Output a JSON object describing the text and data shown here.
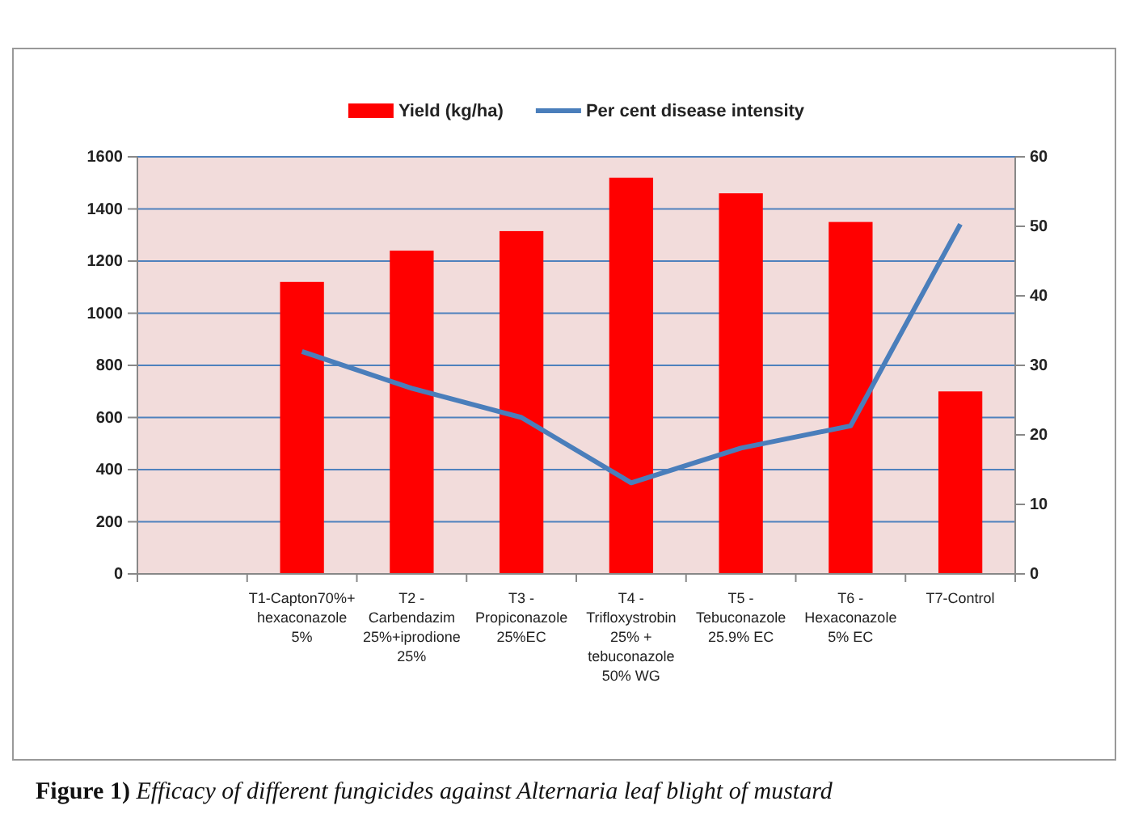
{
  "chart_data": {
    "type": "bar",
    "categories": [
      null,
      "T1-Capton70%+ hexaconazole 5%",
      "T2 - Carbendazim 25%+iprodione 25%",
      "T3 - Propiconazole 25%EC",
      "T4 - Trifloxystrobin 25% + tebuconazole 50% WG",
      "T5 - Tebuconazole 25.9% EC",
      "T6 - Hexaconazole 5% EC",
      "T7-Control"
    ],
    "series": [
      {
        "name": "Yield (kg/ha)",
        "color": "#ff0000",
        "values": [
          null,
          1120,
          1240,
          1315,
          1520,
          1460,
          1350,
          700
        ]
      },
      {
        "name": "Per cent disease intensity",
        "type": "line",
        "axis": "y2",
        "color": "#4a7ebb",
        "values": [
          null,
          32,
          26.7,
          22.5,
          13.1,
          18.1,
          21.3,
          50.3
        ]
      }
    ],
    "ylim": [
      0,
      1600
    ],
    "yticks": [
      0,
      200,
      400,
      600,
      800,
      1000,
      1200,
      1400,
      1600
    ],
    "y2lim": [
      0,
      60
    ],
    "y2ticks": [
      0,
      10,
      20,
      30,
      40,
      50,
      60
    ],
    "grid": "y",
    "legend": "top",
    "marker": "none",
    "line_style": "solid",
    "annotations": [
      "Figure 1) Efficacy of different fungicides against Alternaria leaf blight of mustard"
    ]
  }
}
